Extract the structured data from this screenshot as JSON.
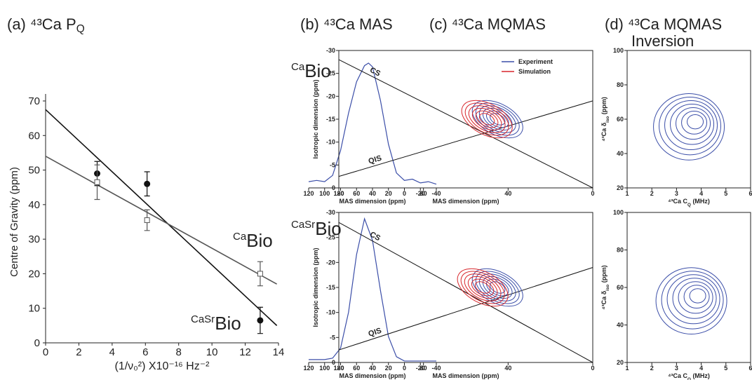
{
  "chart_data": [
    {
      "type": "scatter",
      "title": [
        "(a) ⁴³Ca P",
        "Q"
      ],
      "xlabel": "(1/ν₀²) X10⁻¹⁶ Hz⁻²",
      "ylabel": "Centre of Gravity (ppm)",
      "xlim": [
        0,
        14
      ],
      "xticks": [
        0,
        2,
        4,
        6,
        8,
        10,
        12,
        14
      ],
      "ylim": [
        0,
        70
      ],
      "yticks": [
        0,
        10,
        20,
        30,
        40,
        50,
        60,
        70
      ],
      "series": [
        {
          "color": "#111111",
          "marker": "circle",
          "x": [
            3.1,
            6.1,
            12.9
          ],
          "values": [
            49,
            46,
            6.5
          ],
          "errors": [
            3.5,
            3.5,
            3.8
          ]
        },
        {
          "color": "#555555",
          "marker": "square",
          "x": [
            3.1,
            6.1,
            12.9
          ],
          "values": [
            46.5,
            35.5,
            20
          ],
          "errors": [
            5,
            3,
            3.5
          ]
        }
      ],
      "fit_lines": [
        {
          "color": "#111111",
          "x": [
            0,
            13.9
          ],
          "values": [
            67.5,
            5
          ]
        },
        {
          "color": "#555555",
          "x": [
            0,
            13.9
          ],
          "values": [
            54,
            17
          ]
        }
      ],
      "annotations": [
        {
          "superscript": "Ca",
          "text": "Bio"
        },
        {
          "superscript": "CaSr",
          "text": "Bio"
        }
      ]
    },
    {
      "type": "line",
      "title": "(b) ⁴³Ca MAS",
      "xlabel": "MAS dimension (ppm)",
      "xlim": [
        120,
        -40
      ],
      "xticks": [
        120,
        100,
        80,
        60,
        40,
        20,
        0,
        -20,
        -40
      ],
      "ylim": [
        0,
        1
      ],
      "color": "#3b4ea8",
      "x": [
        120,
        110,
        100,
        90,
        80,
        70,
        60,
        50,
        45,
        40,
        30,
        20,
        10,
        0,
        -10,
        -20,
        -30,
        -40
      ],
      "values": [
        0.05,
        0.06,
        0.05,
        0.1,
        0.3,
        0.6,
        0.85,
        0.98,
        1.0,
        0.97,
        0.7,
        0.35,
        0.12,
        0.06,
        0.07,
        0.04,
        0.05,
        0.03
      ],
      "annotations": [
        {
          "superscript": "Ca",
          "text": "Bio"
        }
      ]
    },
    {
      "type": "line",
      "xlabel": "MAS dimension (ppm)",
      "xlim": [
        120,
        -40
      ],
      "xticks": [
        120,
        100,
        80,
        60,
        40,
        20,
        0,
        -20,
        -40
      ],
      "ylim": [
        0,
        1
      ],
      "color": "#3b4ea8",
      "x": [
        120,
        110,
        100,
        90,
        80,
        70,
        60,
        50,
        40,
        30,
        20,
        10,
        0,
        -10,
        -20,
        -30,
        -40
      ],
      "values": [
        0.02,
        0.02,
        0.02,
        0.03,
        0.1,
        0.35,
        0.75,
        1.0,
        0.85,
        0.5,
        0.18,
        0.04,
        0.01,
        0.01,
        0.01,
        0.01,
        0.01
      ],
      "annotations": [
        {
          "superscript": "CaSr",
          "text": "Bio"
        }
      ]
    },
    {
      "type": "contour",
      "title": "(c) ⁴³Ca MQMAS",
      "xlabel": "MAS dimension (ppm)",
      "ylabel": "Isotropic dimension (ppm)",
      "xlim": [
        120,
        0
      ],
      "xticks": [
        120,
        80,
        40,
        0
      ],
      "ylim": [
        0,
        -30
      ],
      "yticks": [
        0,
        -5,
        -10,
        -15,
        -20,
        -25,
        -30
      ],
      "series": [
        {
          "name": "Experiment",
          "color": "#3b4ea8",
          "peak_x": 45,
          "peak_y": -15
        },
        {
          "name": "Simulation",
          "color": "#d8262b",
          "peak_x": 50,
          "peak_y": -15
        }
      ],
      "lines": [
        {
          "label": "CS",
          "x": [
            120,
            0
          ],
          "values": [
            -28,
            0
          ]
        },
        {
          "label": "QIS",
          "x": [
            120,
            0
          ],
          "values": [
            -2.5,
            -19
          ]
        }
      ]
    },
    {
      "type": "contour",
      "xlabel": "MAS dimension (ppm)",
      "ylabel": "Isotropic dimension (ppm)",
      "xlim": [
        120,
        0
      ],
      "xticks": [
        120,
        80,
        40,
        0
      ],
      "ylim": [
        0,
        -30
      ],
      "yticks": [
        0,
        -5,
        -10,
        -15,
        -20,
        -25,
        -30
      ],
      "series": [
        {
          "color": "#3b4ea8",
          "peak_x": 45,
          "peak_y": -15
        },
        {
          "color": "#d8262b",
          "peak_x": 52,
          "peak_y": -15
        }
      ],
      "lines": [
        {
          "label": "CS",
          "x": [
            120,
            0
          ],
          "values": [
            -28,
            0
          ]
        },
        {
          "label": "QIS",
          "x": [
            120,
            0
          ],
          "values": [
            -2.5,
            -19
          ]
        }
      ]
    },
    {
      "type": "contour",
      "title": "(d) ⁴³Ca MQMAS",
      "subtitle": "Inversion",
      "xlabel": [
        "⁴³Ca C",
        "Q",
        " (MHz)"
      ],
      "ylabel": [
        "⁴³Ca δ",
        "iso",
        " (ppm)"
      ],
      "xlim": [
        1,
        6
      ],
      "xticks": [
        1,
        2,
        3,
        4,
        5,
        6
      ],
      "ylim": [
        20,
        100
      ],
      "yticks": [
        20,
        40,
        60,
        80,
        100
      ],
      "series": [
        {
          "color": "#3b4ea8",
          "peak_x": 3.8,
          "peak_y": 59
        }
      ]
    },
    {
      "type": "contour",
      "xlabel": [
        "⁴³Ca C",
        "Q",
        " (MHz)"
      ],
      "ylabel": [
        "⁴³Ca δ",
        "iso",
        " (ppm)"
      ],
      "xlim": [
        1,
        6
      ],
      "xticks": [
        1,
        2,
        3,
        4,
        5,
        6
      ],
      "ylim": [
        20,
        100
      ],
      "yticks": [
        20,
        40,
        60,
        80,
        100
      ],
      "series": [
        {
          "color": "#3b4ea8",
          "peak_x": 3.9,
          "peak_y": 56
        }
      ]
    }
  ]
}
